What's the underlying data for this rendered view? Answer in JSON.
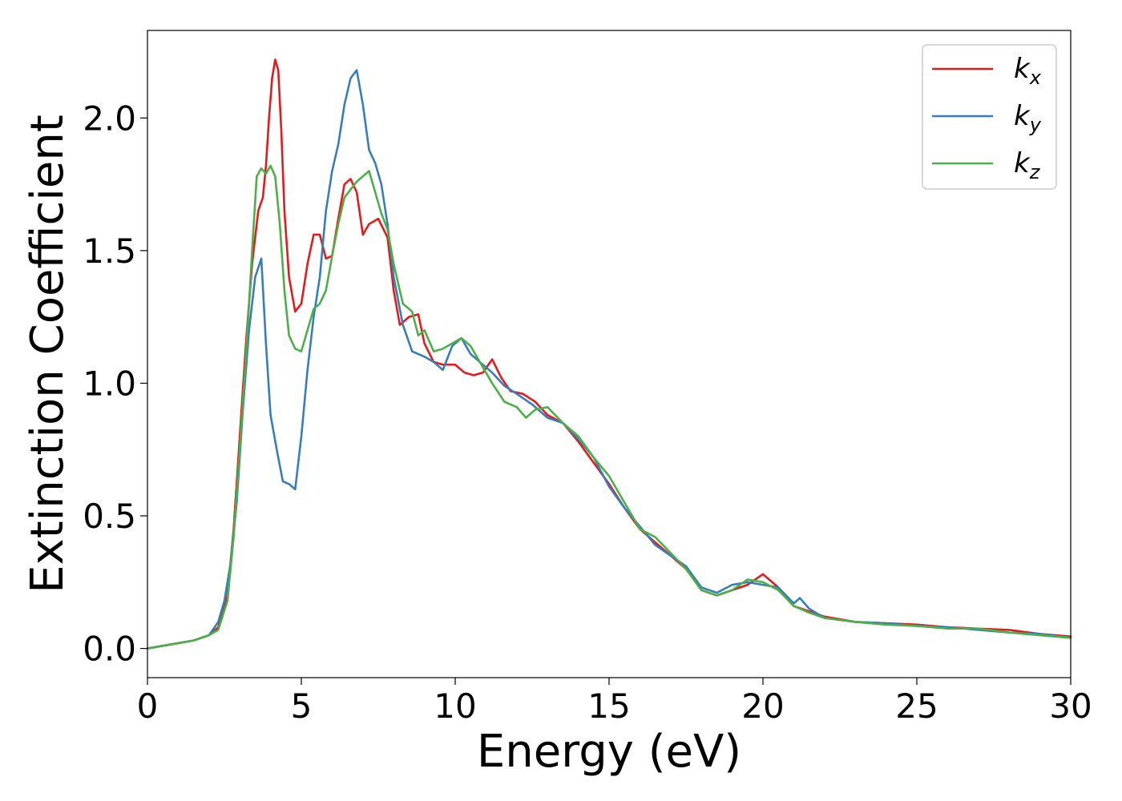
{
  "chart_data": {
    "type": "line",
    "xlabel": "Energy (eV)",
    "ylabel": "Extinction Coefficient",
    "xlim": [
      0,
      30
    ],
    "ylim": [
      -0.11,
      2.33
    ],
    "xticks": [
      "0",
      "5",
      "10",
      "15",
      "20",
      "25",
      "30"
    ],
    "xtick_values": [
      0,
      5,
      10,
      15,
      20,
      25,
      30
    ],
    "yticks": [
      "0.0",
      "0.5",
      "1.0",
      "1.5",
      "2.0"
    ],
    "ytick_values": [
      0.0,
      0.5,
      1.0,
      1.5,
      2.0
    ],
    "grid": false,
    "legend_position": "top-right",
    "series": [
      {
        "name": "kx",
        "base": "k",
        "sub": "x",
        "color": "#e41a1c",
        "x": [
          0,
          1,
          1.5,
          2,
          2.3,
          2.6,
          2.8,
          3.0,
          3.2,
          3.4,
          3.6,
          3.75,
          3.85,
          3.95,
          4.05,
          4.15,
          4.25,
          4.35,
          4.45,
          4.6,
          4.8,
          5.0,
          5.2,
          5.4,
          5.6,
          5.8,
          6.0,
          6.2,
          6.4,
          6.6,
          6.8,
          7.0,
          7.2,
          7.5,
          7.8,
          8.0,
          8.2,
          8.5,
          8.8,
          9.0,
          9.3,
          9.6,
          10.0,
          10.3,
          10.6,
          10.9,
          11.2,
          11.5,
          11.8,
          12.2,
          12.6,
          13.0,
          13.5,
          14.0,
          14.5,
          15.0,
          15.5,
          16.0,
          16.5,
          17.0,
          17.5,
          18.0,
          18.5,
          19.0,
          19.5,
          20.0,
          20.5,
          21.0,
          21.5,
          22.0,
          23.0,
          24.0,
          25.0,
          26.0,
          27.0,
          28.0,
          29.0,
          30.0
        ],
        "y": [
          0,
          0.02,
          0.03,
          0.05,
          0.08,
          0.2,
          0.45,
          0.8,
          1.15,
          1.45,
          1.65,
          1.7,
          1.82,
          2.0,
          2.15,
          2.22,
          2.18,
          1.95,
          1.65,
          1.4,
          1.27,
          1.3,
          1.45,
          1.56,
          1.56,
          1.47,
          1.48,
          1.62,
          1.75,
          1.77,
          1.72,
          1.56,
          1.6,
          1.62,
          1.55,
          1.35,
          1.22,
          1.25,
          1.26,
          1.15,
          1.08,
          1.07,
          1.07,
          1.04,
          1.03,
          1.04,
          1.09,
          1.02,
          0.97,
          0.96,
          0.93,
          0.88,
          0.85,
          0.78,
          0.7,
          0.62,
          0.53,
          0.45,
          0.4,
          0.35,
          0.3,
          0.22,
          0.2,
          0.22,
          0.24,
          0.28,
          0.23,
          0.16,
          0.14,
          0.12,
          0.1,
          0.095,
          0.09,
          0.08,
          0.075,
          0.07,
          0.055,
          0.045
        ]
      },
      {
        "name": "ky",
        "base": "k",
        "sub": "y",
        "color": "#377eb8",
        "x": [
          0,
          1,
          1.5,
          2,
          2.3,
          2.5,
          2.7,
          2.9,
          3.1,
          3.3,
          3.5,
          3.7,
          3.85,
          4.0,
          4.2,
          4.4,
          4.6,
          4.8,
          5.0,
          5.2,
          5.4,
          5.6,
          5.8,
          6.0,
          6.2,
          6.4,
          6.6,
          6.8,
          7.0,
          7.2,
          7.4,
          7.6,
          7.8,
          8.0,
          8.3,
          8.6,
          9.0,
          9.3,
          9.6,
          9.9,
          10.2,
          10.5,
          10.8,
          11.2,
          11.6,
          12.0,
          12.5,
          13.0,
          13.5,
          14.0,
          14.5,
          15.0,
          15.5,
          16.0,
          16.5,
          17.0,
          17.5,
          18.0,
          18.5,
          19.0,
          19.5,
          20.0,
          20.5,
          21.0,
          21.2,
          21.5,
          22.0,
          23.0,
          24.0,
          25.0,
          26.0,
          27.0,
          28.0,
          29.0,
          30.0
        ],
        "y": [
          0,
          0.02,
          0.03,
          0.05,
          0.1,
          0.18,
          0.32,
          0.55,
          0.9,
          1.2,
          1.4,
          1.47,
          1.15,
          0.88,
          0.75,
          0.63,
          0.62,
          0.6,
          0.8,
          1.05,
          1.25,
          1.4,
          1.65,
          1.8,
          1.9,
          2.05,
          2.15,
          2.18,
          2.05,
          1.88,
          1.83,
          1.75,
          1.6,
          1.4,
          1.22,
          1.12,
          1.1,
          1.08,
          1.05,
          1.14,
          1.17,
          1.11,
          1.08,
          1.04,
          0.99,
          0.96,
          0.92,
          0.87,
          0.85,
          0.79,
          0.72,
          0.61,
          0.53,
          0.46,
          0.39,
          0.35,
          0.31,
          0.23,
          0.21,
          0.24,
          0.25,
          0.24,
          0.23,
          0.17,
          0.19,
          0.15,
          0.115,
          0.1,
          0.095,
          0.085,
          0.08,
          0.07,
          0.06,
          0.055,
          0.04
        ]
      },
      {
        "name": "kz",
        "base": "k",
        "sub": "z",
        "color": "#4daf4a",
        "x": [
          0,
          1,
          1.5,
          2,
          2.3,
          2.6,
          2.8,
          3.0,
          3.2,
          3.4,
          3.55,
          3.7,
          3.85,
          4.0,
          4.15,
          4.3,
          4.45,
          4.6,
          4.8,
          5.0,
          5.2,
          5.4,
          5.6,
          5.8,
          6.0,
          6.2,
          6.4,
          6.6,
          6.8,
          7.0,
          7.2,
          7.4,
          7.6,
          7.8,
          8.0,
          8.3,
          8.6,
          8.8,
          9.0,
          9.3,
          9.6,
          9.9,
          10.2,
          10.5,
          10.8,
          11.2,
          11.6,
          12.0,
          12.3,
          12.6,
          13.0,
          13.5,
          14.0,
          14.5,
          15.0,
          15.5,
          16.0,
          16.5,
          17.0,
          17.5,
          18.0,
          18.5,
          19.0,
          19.5,
          20.0,
          20.5,
          21.0,
          21.5,
          22.0,
          23.0,
          24.0,
          25.0,
          26.0,
          27.0,
          28.0,
          29.0,
          30.0
        ],
        "y": [
          0,
          0.02,
          0.03,
          0.05,
          0.07,
          0.18,
          0.42,
          0.75,
          1.1,
          1.5,
          1.78,
          1.81,
          1.79,
          1.82,
          1.78,
          1.6,
          1.35,
          1.18,
          1.13,
          1.12,
          1.2,
          1.28,
          1.3,
          1.35,
          1.48,
          1.6,
          1.7,
          1.73,
          1.76,
          1.78,
          1.8,
          1.72,
          1.64,
          1.58,
          1.45,
          1.3,
          1.27,
          1.18,
          1.2,
          1.12,
          1.13,
          1.15,
          1.17,
          1.14,
          1.08,
          1.0,
          0.93,
          0.91,
          0.87,
          0.9,
          0.91,
          0.85,
          0.8,
          0.72,
          0.65,
          0.55,
          0.45,
          0.42,
          0.36,
          0.3,
          0.22,
          0.2,
          0.22,
          0.26,
          0.25,
          0.22,
          0.16,
          0.135,
          0.115,
          0.1,
          0.09,
          0.085,
          0.075,
          0.075,
          0.06,
          0.05,
          0.04
        ]
      }
    ]
  }
}
